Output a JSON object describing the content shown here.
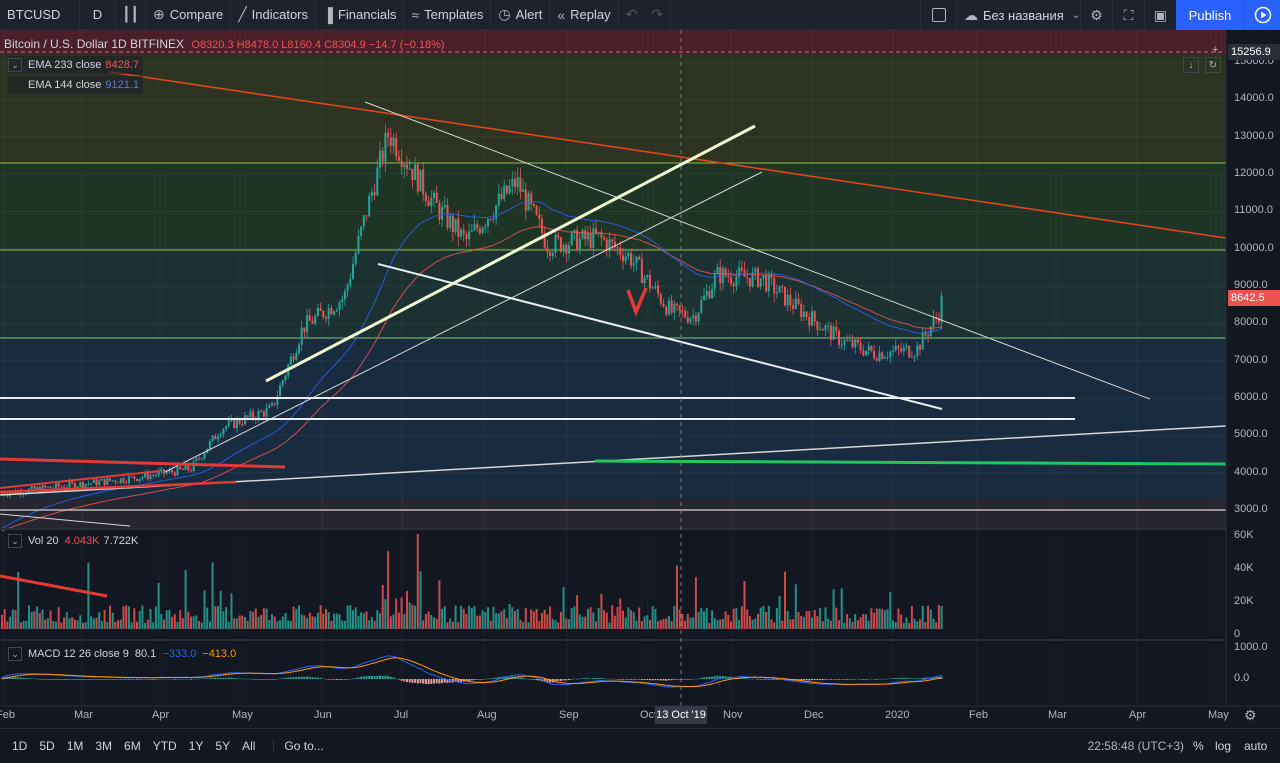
{
  "toolbar": {
    "symbol": "BTCUSD",
    "interval": "D",
    "compare": "Compare",
    "indicators": "Indicators",
    "financials": "Financials",
    "templates": "Templates",
    "alert": "Alert",
    "replay": "Replay",
    "layout_name": "Без названия",
    "publish": "Publish"
  },
  "legend": {
    "title": "Bitcoin / U.S. Dollar  1D  BITFINEX",
    "ohlc": "O8320.3 H8478.0 L8160.4 C8304.9 −14.7 (−0.18%)",
    "ema233_label": "EMA 233 close",
    "ema233_value": "8428.7",
    "ema144_label": "EMA 144 close",
    "ema144_value": "9121.1",
    "vol_label": "Vol 20",
    "vol_value1": "4.043K",
    "vol_value2": "7.722K",
    "macd_label": "MACD 12 26 close 9",
    "macd_v1": "80.1",
    "macd_v2": "−333.0",
    "macd_v3": "−413.0"
  },
  "price_axis": {
    "ticks": [
      "15000.0",
      "14000.0",
      "13000.0",
      "12000.0",
      "11000.0",
      "10000.0",
      "9000.0",
      "8000.0",
      "7000.0",
      "6000.0",
      "5000.0",
      "4000.0",
      "3000.0"
    ],
    "top_badge": "15256.9",
    "last_price": "8642.5"
  },
  "vol_axis": [
    "60K",
    "40K",
    "20K",
    "0"
  ],
  "macd_axis": [
    "1000.0",
    "0.0"
  ],
  "time_axis": [
    "Feb",
    "Mar",
    "Apr",
    "May",
    "Jun",
    "Jul",
    "Aug",
    "Sep",
    "Oct",
    "Nov",
    "Dec",
    "2020",
    "Feb",
    "Mar",
    "Apr",
    "May"
  ],
  "crosshair_date": "13 Oct '19",
  "bottom": {
    "ranges": [
      "1D",
      "5D",
      "1M",
      "3M",
      "6M",
      "YTD",
      "1Y",
      "5Y",
      "All"
    ],
    "goto": "Go to...",
    "clock": "22:58:48 (UTC+3)",
    "percent": "%",
    "log": "log",
    "auto": "auto"
  },
  "colors": {
    "background": "#131722",
    "up": "#26a69a",
    "down": "#ef5350",
    "accent": "#2962ff",
    "ema233": "#ef5350",
    "ema144": "#2962ff"
  },
  "chart_data": {
    "type": "candlestick",
    "symbol": "BTCUSD",
    "exchange": "BITFINEX",
    "interval": "1D",
    "price_range": [
      2700,
      15300
    ],
    "close_path": [
      [
        "Feb",
        3450
      ],
      [
        "Mar",
        3850
      ],
      [
        "Apr",
        4100
      ],
      [
        "Apr",
        5200
      ],
      [
        "May",
        5700
      ],
      [
        "May",
        7900
      ],
      [
        "Jun",
        8700
      ],
      [
        "Jun",
        11000
      ],
      [
        "Jun",
        13100
      ],
      [
        "Jul",
        11200
      ],
      [
        "Jul",
        10200
      ],
      [
        "Aug",
        11800
      ],
      [
        "Aug",
        10100
      ],
      [
        "Sep",
        10300
      ],
      [
        "Sep",
        9800
      ],
      [
        "Oct",
        8300
      ],
      [
        "Oct",
        8200
      ],
      [
        "Oct",
        9300
      ],
      [
        "Nov",
        9200
      ],
      [
        "Nov",
        8500
      ],
      [
        "Dec",
        7500
      ],
      [
        "Dec",
        7200
      ],
      [
        "2020",
        7300
      ],
      [
        "2020",
        8300
      ],
      [
        "2020",
        8640
      ]
    ]
  }
}
